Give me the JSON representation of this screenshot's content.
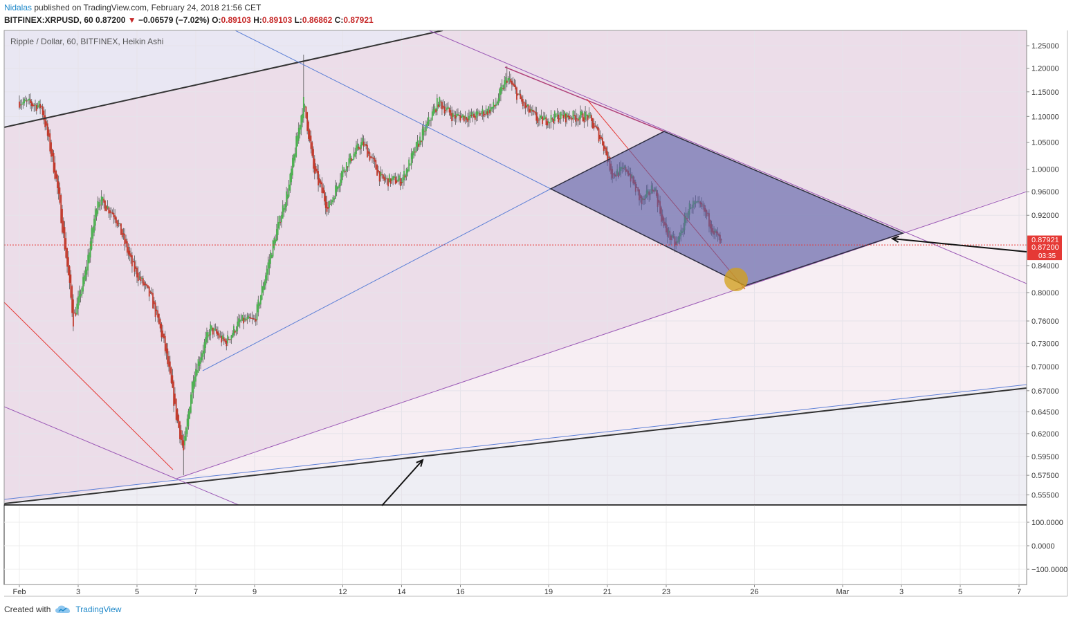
{
  "header": {
    "author": "Nidalas",
    "published_text": "published on TradingView.com, February 24, 2018 21:56 CET",
    "symbol": "BITFINEX:XRPUSD, 60",
    "last": "0.87200",
    "change": "−0.06579 (−7.02%)",
    "o_label": "O:",
    "o": "0.89103",
    "h_label": "H:",
    "h": "0.89103",
    "l_label": "L:",
    "l": "0.86862",
    "c_label": "C:",
    "c": "0.87921"
  },
  "footer": {
    "created_with": "Created with",
    "brand": "TradingView"
  },
  "colors": {
    "up": "#4caf50",
    "down": "#c0392b",
    "wick": "#555555",
    "trend_black": "#333333",
    "trend_blue": "#5b7fd6",
    "trend_purple": "#9b59b6",
    "trend_red": "#e53935",
    "rhombus_fill": "#5b5fa6",
    "circle_fill": "#d4a017",
    "price_tag": "#e53935"
  },
  "chart_data": {
    "type": "candlestick",
    "title": "Ripple / Dollar, 60, BITFINEX, Heikin Ashi",
    "timeframe": "60",
    "x_ticks": [
      "Feb",
      "3",
      "5",
      "7",
      "9",
      "12",
      "14",
      "16",
      "19",
      "21",
      "23",
      "26",
      "Mar",
      "3",
      "5",
      "7"
    ],
    "y_ticks": [
      "1.25000",
      "1.20000",
      "1.15000",
      "1.10000",
      "1.05000",
      "1.00000",
      "0.96000",
      "0.92000",
      "0.84000",
      "0.80000",
      "0.76000",
      "0.73000",
      "0.70000",
      "0.67000",
      "0.64500",
      "0.62000",
      "0.59500",
      "0.57500",
      "0.55500"
    ],
    "ylim": [
      0.545,
      1.285
    ],
    "scale": "log",
    "current_price": "0.87200",
    "current_price_upper": "0.87921",
    "countdown": "03:35",
    "close_path": [
      {
        "t": "Feb 1 00:00",
        "y": 1.13
      },
      {
        "t": "Feb 1 18:00",
        "y": 1.12
      },
      {
        "t": "Feb 2 06:00",
        "y": 0.98
      },
      {
        "t": "Feb 2 20:00",
        "y": 0.76
      },
      {
        "t": "Feb 3 06:00",
        "y": 0.83
      },
      {
        "t": "Feb 3 16:00",
        "y": 0.95
      },
      {
        "t": "Feb 4 06:00",
        "y": 0.92
      },
      {
        "t": "Feb 4 20:00",
        "y": 0.84
      },
      {
        "t": "Feb 5 12:00",
        "y": 0.79
      },
      {
        "t": "Feb 5 22:00",
        "y": 0.73
      },
      {
        "t": "Feb 6 08:00",
        "y": 0.64
      },
      {
        "t": "Feb 6 14:00",
        "y": 0.6
      },
      {
        "t": "Feb 6 22:00",
        "y": 0.69
      },
      {
        "t": "Feb 7 12:00",
        "y": 0.75
      },
      {
        "t": "Feb 8 00:00",
        "y": 0.73
      },
      {
        "t": "Feb 8 12:00",
        "y": 0.76
      },
      {
        "t": "Feb 9 00:00",
        "y": 0.76
      },
      {
        "t": "Feb 9 12:00",
        "y": 0.85
      },
      {
        "t": "Feb 10 04:00",
        "y": 0.97
      },
      {
        "t": "Feb 10 16:00",
        "y": 1.13
      },
      {
        "t": "Feb 11 00:00",
        "y": 1.0
      },
      {
        "t": "Feb 11 12:00",
        "y": 0.93
      },
      {
        "t": "Feb 12 00:00",
        "y": 1.0
      },
      {
        "t": "Feb 12 16:00",
        "y": 1.05
      },
      {
        "t": "Feb 13 08:00",
        "y": 0.98
      },
      {
        "t": "Feb 14 00:00",
        "y": 0.98
      },
      {
        "t": "Feb 14 16:00",
        "y": 1.06
      },
      {
        "t": "Feb 15 06:00",
        "y": 1.13
      },
      {
        "t": "Feb 15 18:00",
        "y": 1.1
      },
      {
        "t": "Feb 16 12:00",
        "y": 1.1
      },
      {
        "t": "Feb 17 04:00",
        "y": 1.12
      },
      {
        "t": "Feb 17 14:00",
        "y": 1.18
      },
      {
        "t": "Feb 18 04:00",
        "y": 1.12
      },
      {
        "t": "Feb 18 16:00",
        "y": 1.09
      },
      {
        "t": "Feb 19 08:00",
        "y": 1.1
      },
      {
        "t": "Feb 20 08:00",
        "y": 1.1
      },
      {
        "t": "Feb 20 20:00",
        "y": 1.05
      },
      {
        "t": "Feb 21 04:00",
        "y": 0.99
      },
      {
        "t": "Feb 21 16:00",
        "y": 1.0
      },
      {
        "t": "Feb 22 04:00",
        "y": 0.94
      },
      {
        "t": "Feb 22 14:00",
        "y": 0.97
      },
      {
        "t": "Feb 22 22:00",
        "y": 0.9
      },
      {
        "t": "Feb 23 08:00",
        "y": 0.87
      },
      {
        "t": "Feb 23 20:00",
        "y": 0.94
      },
      {
        "t": "Feb 24 06:00",
        "y": 0.93
      },
      {
        "t": "Feb 24 16:00",
        "y": 0.89
      },
      {
        "t": "Feb 24 21:00",
        "y": 0.872
      }
    ],
    "extremes": [
      {
        "t": "Feb 6 14:00",
        "low": 0.575
      },
      {
        "t": "Feb 10 16:00",
        "high": 1.23
      },
      {
        "t": "Feb 17 14:00",
        "high": 1.205
      }
    ],
    "oscillator": {
      "y_ticks": [
        "100.0000",
        "0.0000",
        "−100.0000"
      ]
    }
  }
}
